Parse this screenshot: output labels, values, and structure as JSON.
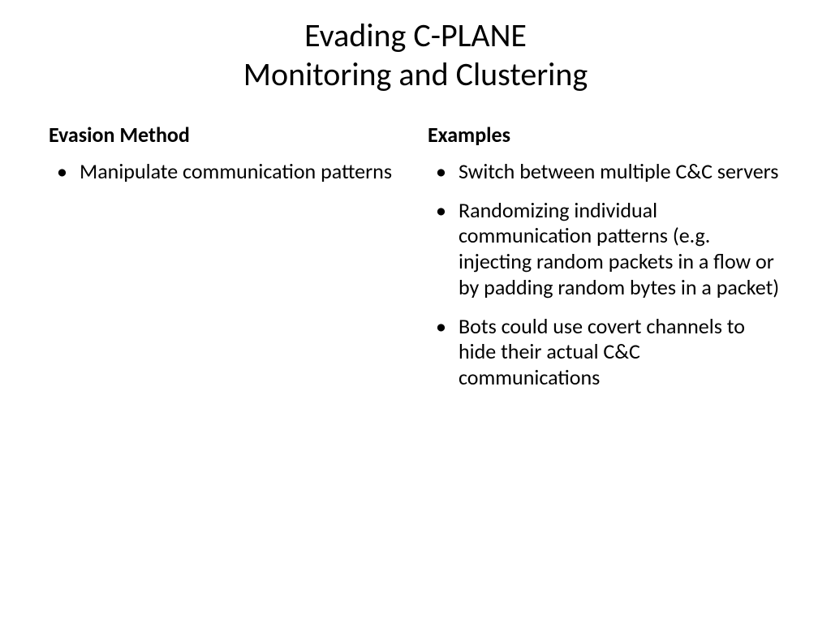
{
  "slide": {
    "title_line1": "Evading C-PLANE",
    "title_line2": "Monitoring and Clustering",
    "left": {
      "heading": "Evasion Method",
      "bullets": [
        "Manipulate communication patterns"
      ]
    },
    "right": {
      "heading": "Examples",
      "bullets": [
        "Switch between multiple C&C servers",
        "Randomizing individual communication patterns (e.g. injecting random packets in a flow or by padding random bytes in a packet)",
        "Bots could use covert channels to hide their actual C&C communications"
      ]
    }
  },
  "style": {
    "background_color": "#ffffff",
    "text_color": "#000000",
    "title_fontsize": 40,
    "subhead_fontsize": 26,
    "body_fontsize": 26,
    "font_family": "Calibri"
  }
}
